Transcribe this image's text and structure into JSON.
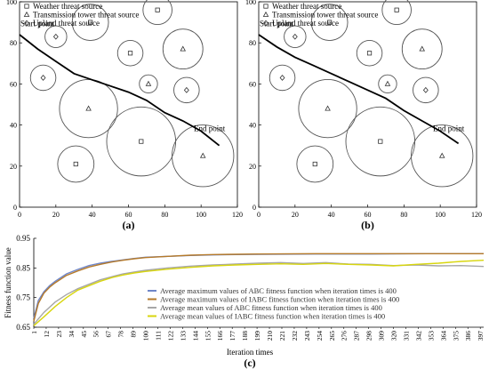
{
  "chart_data": [
    {
      "type": "scatter",
      "panel_label": "(a)",
      "xlim": [
        0,
        120
      ],
      "ylim": [
        0,
        100
      ],
      "xticks": [
        "0",
        "20",
        "40",
        "60",
        "80",
        "100",
        "120"
      ],
      "yticks": [
        "0",
        "20",
        "40",
        "60",
        "80",
        "100"
      ],
      "grid": false,
      "legend_position": "top-left",
      "legend": [
        {
          "label": "Weather threat source",
          "marker": "square"
        },
        {
          "label": "Transmission tower threat source",
          "marker": "triangle"
        },
        {
          "label": "Upland threat source",
          "marker": "diamond"
        }
      ],
      "start_label": "Start point",
      "end_label": "End point",
      "threats": [
        {
          "x": 20,
          "y": 83,
          "r": 6,
          "marker": "diamond"
        },
        {
          "x": 39,
          "y": 90,
          "r": 10,
          "marker": "square"
        },
        {
          "x": 61,
          "y": 75,
          "r": 7,
          "marker": "square"
        },
        {
          "x": 76,
          "y": 96,
          "r": 8,
          "marker": "square"
        },
        {
          "x": 90,
          "y": 77,
          "r": 11,
          "marker": "triangle"
        },
        {
          "x": 13,
          "y": 63,
          "r": 7,
          "marker": "diamond"
        },
        {
          "x": 71,
          "y": 60,
          "r": 5,
          "marker": "triangle"
        },
        {
          "x": 92,
          "y": 57,
          "r": 7,
          "marker": "diamond"
        },
        {
          "x": 38,
          "y": 48,
          "r": 16,
          "marker": "triangle"
        },
        {
          "x": 67,
          "y": 32,
          "r": 19,
          "marker": "square"
        },
        {
          "x": 31,
          "y": 21,
          "r": 10,
          "marker": "square"
        },
        {
          "x": 101,
          "y": 25,
          "r": 17,
          "marker": "triangle"
        }
      ],
      "path": {
        "x": [
          0,
          10,
          20,
          30,
          40,
          50,
          60,
          70,
          80,
          90,
          100,
          110
        ],
        "y": [
          84,
          77,
          71,
          65,
          62,
          59,
          56,
          52,
          46,
          42,
          37,
          30
        ]
      }
    },
    {
      "type": "scatter",
      "panel_label": "(b)",
      "xlim": [
        0,
        120
      ],
      "ylim": [
        0,
        100
      ],
      "xticks": [
        "0",
        "20",
        "40",
        "60",
        "80",
        "100",
        "120"
      ],
      "yticks": [
        "0",
        "20",
        "40",
        "60",
        "80",
        "100"
      ],
      "grid": false,
      "legend_position": "top-left",
      "legend": [
        {
          "label": "Weather threat source",
          "marker": "square"
        },
        {
          "label": "Transmission tower threat source",
          "marker": "triangle"
        },
        {
          "label": "Upland threat source",
          "marker": "diamond"
        }
      ],
      "start_label": "Start point",
      "end_label": "End point",
      "threats": [
        {
          "x": 20,
          "y": 83,
          "r": 6,
          "marker": "diamond"
        },
        {
          "x": 39,
          "y": 90,
          "r": 10,
          "marker": "square"
        },
        {
          "x": 61,
          "y": 75,
          "r": 7,
          "marker": "square"
        },
        {
          "x": 76,
          "y": 96,
          "r": 8,
          "marker": "square"
        },
        {
          "x": 90,
          "y": 77,
          "r": 11,
          "marker": "triangle"
        },
        {
          "x": 13,
          "y": 63,
          "r": 7,
          "marker": "diamond"
        },
        {
          "x": 71,
          "y": 60,
          "r": 5,
          "marker": "triangle"
        },
        {
          "x": 92,
          "y": 57,
          "r": 7,
          "marker": "diamond"
        },
        {
          "x": 38,
          "y": 48,
          "r": 16,
          "marker": "triangle"
        },
        {
          "x": 67,
          "y": 32,
          "r": 19,
          "marker": "square"
        },
        {
          "x": 31,
          "y": 21,
          "r": 10,
          "marker": "square"
        },
        {
          "x": 101,
          "y": 25,
          "r": 17,
          "marker": "triangle"
        }
      ],
      "path": {
        "x": [
          0,
          10,
          20,
          30,
          40,
          50,
          60,
          70,
          80,
          90,
          100,
          110
        ],
        "y": [
          84,
          78,
          73,
          69,
          65,
          61,
          57,
          53,
          47,
          42,
          37,
          31
        ]
      }
    },
    {
      "type": "line",
      "panel_label": "(c)",
      "xlabel": "Iteration times",
      "ylabel": "Fitness function value",
      "xlim": [
        1,
        400
      ],
      "ylim": [
        0.65,
        0.95
      ],
      "yticks": [
        "0.65",
        "0.75",
        "0.85",
        "0.95"
      ],
      "categories": [
        "1",
        "12",
        "23",
        "34",
        "45",
        "56",
        "67",
        "78",
        "89",
        "100",
        "111",
        "122",
        "133",
        "144",
        "155",
        "166",
        "177",
        "188",
        "199",
        "210",
        "221",
        "232",
        "243",
        "254",
        "265",
        "276",
        "287",
        "298",
        "309",
        "320",
        "331",
        "342",
        "353",
        "364",
        "375",
        "386",
        "397"
      ],
      "legend_position": "lower-right",
      "grid": false,
      "series": [
        {
          "name": "Average maximum values of ABC fitness function when iteration times is 400",
          "color": "#6f86c8",
          "x": [
            1,
            5,
            10,
            15,
            20,
            30,
            40,
            50,
            60,
            70,
            80,
            90,
            100,
            120,
            140,
            160,
            180,
            200,
            250,
            300,
            350,
            400
          ],
          "values": [
            0.68,
            0.74,
            0.77,
            0.79,
            0.805,
            0.83,
            0.845,
            0.858,
            0.866,
            0.872,
            0.877,
            0.882,
            0.886,
            0.889,
            0.892,
            0.894,
            0.895,
            0.896,
            0.897,
            0.897,
            0.898,
            0.898
          ]
        },
        {
          "name": "Average maximum values of IABC fitness function when iteration times is 400",
          "color": "#b57a2a",
          "x": [
            1,
            5,
            10,
            15,
            20,
            30,
            40,
            50,
            60,
            70,
            80,
            90,
            100,
            120,
            140,
            160,
            180,
            200,
            250,
            300,
            350,
            400
          ],
          "values": [
            0.67,
            0.73,
            0.765,
            0.785,
            0.8,
            0.825,
            0.84,
            0.853,
            0.862,
            0.87,
            0.876,
            0.881,
            0.885,
            0.889,
            0.893,
            0.895,
            0.896,
            0.897,
            0.898,
            0.898,
            0.898,
            0.898
          ]
        },
        {
          "name": "Average mean values of ABC fitness function when iteration times is 400",
          "color": "#a7a7a7",
          "x": [
            1,
            10,
            20,
            30,
            40,
            50,
            60,
            70,
            80,
            90,
            100,
            120,
            140,
            160,
            180,
            200,
            220,
            240,
            260,
            280,
            300,
            320,
            340,
            360,
            380,
            400
          ],
          "values": [
            0.66,
            0.7,
            0.735,
            0.76,
            0.78,
            0.795,
            0.81,
            0.82,
            0.83,
            0.836,
            0.842,
            0.85,
            0.856,
            0.86,
            0.863,
            0.866,
            0.868,
            0.865,
            0.868,
            0.863,
            0.862,
            0.858,
            0.86,
            0.857,
            0.858,
            0.855
          ]
        },
        {
          "name": "Average mean values of IABC fitness function when iteration times is 400",
          "color": "#d8d60e",
          "x": [
            1,
            10,
            20,
            30,
            40,
            50,
            60,
            70,
            80,
            90,
            100,
            120,
            140,
            160,
            180,
            200,
            220,
            240,
            260,
            280,
            300,
            320,
            340,
            360,
            380,
            400
          ],
          "values": [
            0.655,
            0.685,
            0.72,
            0.75,
            0.775,
            0.79,
            0.805,
            0.817,
            0.826,
            0.833,
            0.838,
            0.846,
            0.852,
            0.857,
            0.86,
            0.862,
            0.864,
            0.862,
            0.865,
            0.862,
            0.86,
            0.857,
            0.862,
            0.866,
            0.872,
            0.876
          ]
        }
      ]
    }
  ]
}
